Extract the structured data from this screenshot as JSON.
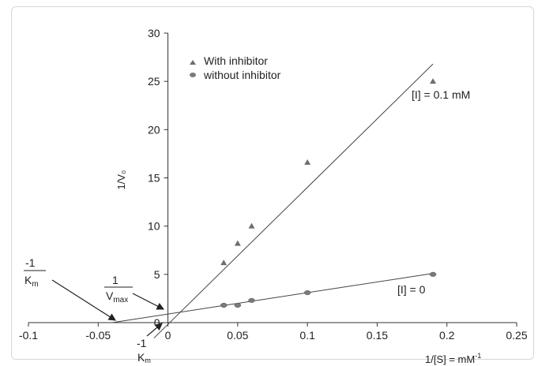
{
  "chart_data": {
    "type": "scatter",
    "title": "",
    "xlabel": "1/[S] = mM",
    "xlabel_superscript": "-1",
    "ylabel": "1/V₀",
    "xlim": [
      -0.1,
      0.25
    ],
    "ylim": [
      0,
      30
    ],
    "x_ticks": [
      "-0.1",
      "-0.05",
      "0",
      "0.05",
      "0.1",
      "0.15",
      "0.2",
      "0.25"
    ],
    "y_ticks": [
      "0",
      "5",
      "10",
      "15",
      "20",
      "25",
      "30"
    ],
    "grid": false,
    "legend_position": "top",
    "series": [
      {
        "name": "With inhibitor",
        "marker": "triangle",
        "color": "#6e6e6e",
        "x": [
          0.04,
          0.05,
          0.06,
          0.1,
          0.19
        ],
        "y": [
          6.2,
          8.2,
          10.0,
          16.6,
          25.0
        ],
        "fit_line": {
          "x_start": -0.01,
          "x_end": 0.19,
          "y_start": -1.6,
          "y_end": 26.8
        },
        "line_label": "[I] = 0.1 mM"
      },
      {
        "name": "without inhibitor",
        "marker": "circle",
        "color": "#7a7a7a",
        "x": [
          0.04,
          0.05,
          0.06,
          0.1,
          0.19
        ],
        "y": [
          1.8,
          1.8,
          2.3,
          3.1,
          5.0
        ],
        "fit_line": {
          "x_start": -0.04,
          "x_end": 0.19,
          "y_start": 0.0,
          "y_end": 5.1
        },
        "line_label": "[I] = 0"
      }
    ],
    "annotations": {
      "neg_inv_km_num": "-1",
      "neg_inv_km_den": "K",
      "neg_inv_km_sub": "m",
      "inv_vmax_num": "1",
      "inv_vmax_den": "V",
      "inv_vmax_sub": "max",
      "neg_inv_kmapp_num": "-1",
      "neg_inv_kmapp_den": "K",
      "neg_inv_kmapp_sub": "m"
    }
  }
}
